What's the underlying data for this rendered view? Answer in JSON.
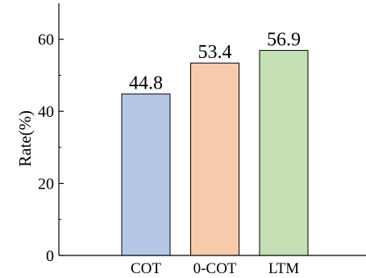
{
  "chart_data": {
    "type": "bar",
    "categories": [
      "COT",
      "0-COT",
      "LTM"
    ],
    "values": [
      44.8,
      53.4,
      56.9
    ],
    "value_labels": [
      "44.8",
      "53.4",
      "56.9"
    ],
    "title": "",
    "xlabel": "",
    "ylabel": "Rate(%)",
    "ylim": [
      0,
      70
    ],
    "yticks": [
      0,
      20,
      40,
      60
    ],
    "ytick_labels": [
      "0",
      "20",
      "40",
      "60"
    ],
    "minor_yticks": [
      10,
      30,
      50
    ],
    "grid": false,
    "legend": "none",
    "colors": [
      "#b4c7e7",
      "#f8cbad",
      "#c5e0b4"
    ],
    "edge_color": "#000000"
  }
}
